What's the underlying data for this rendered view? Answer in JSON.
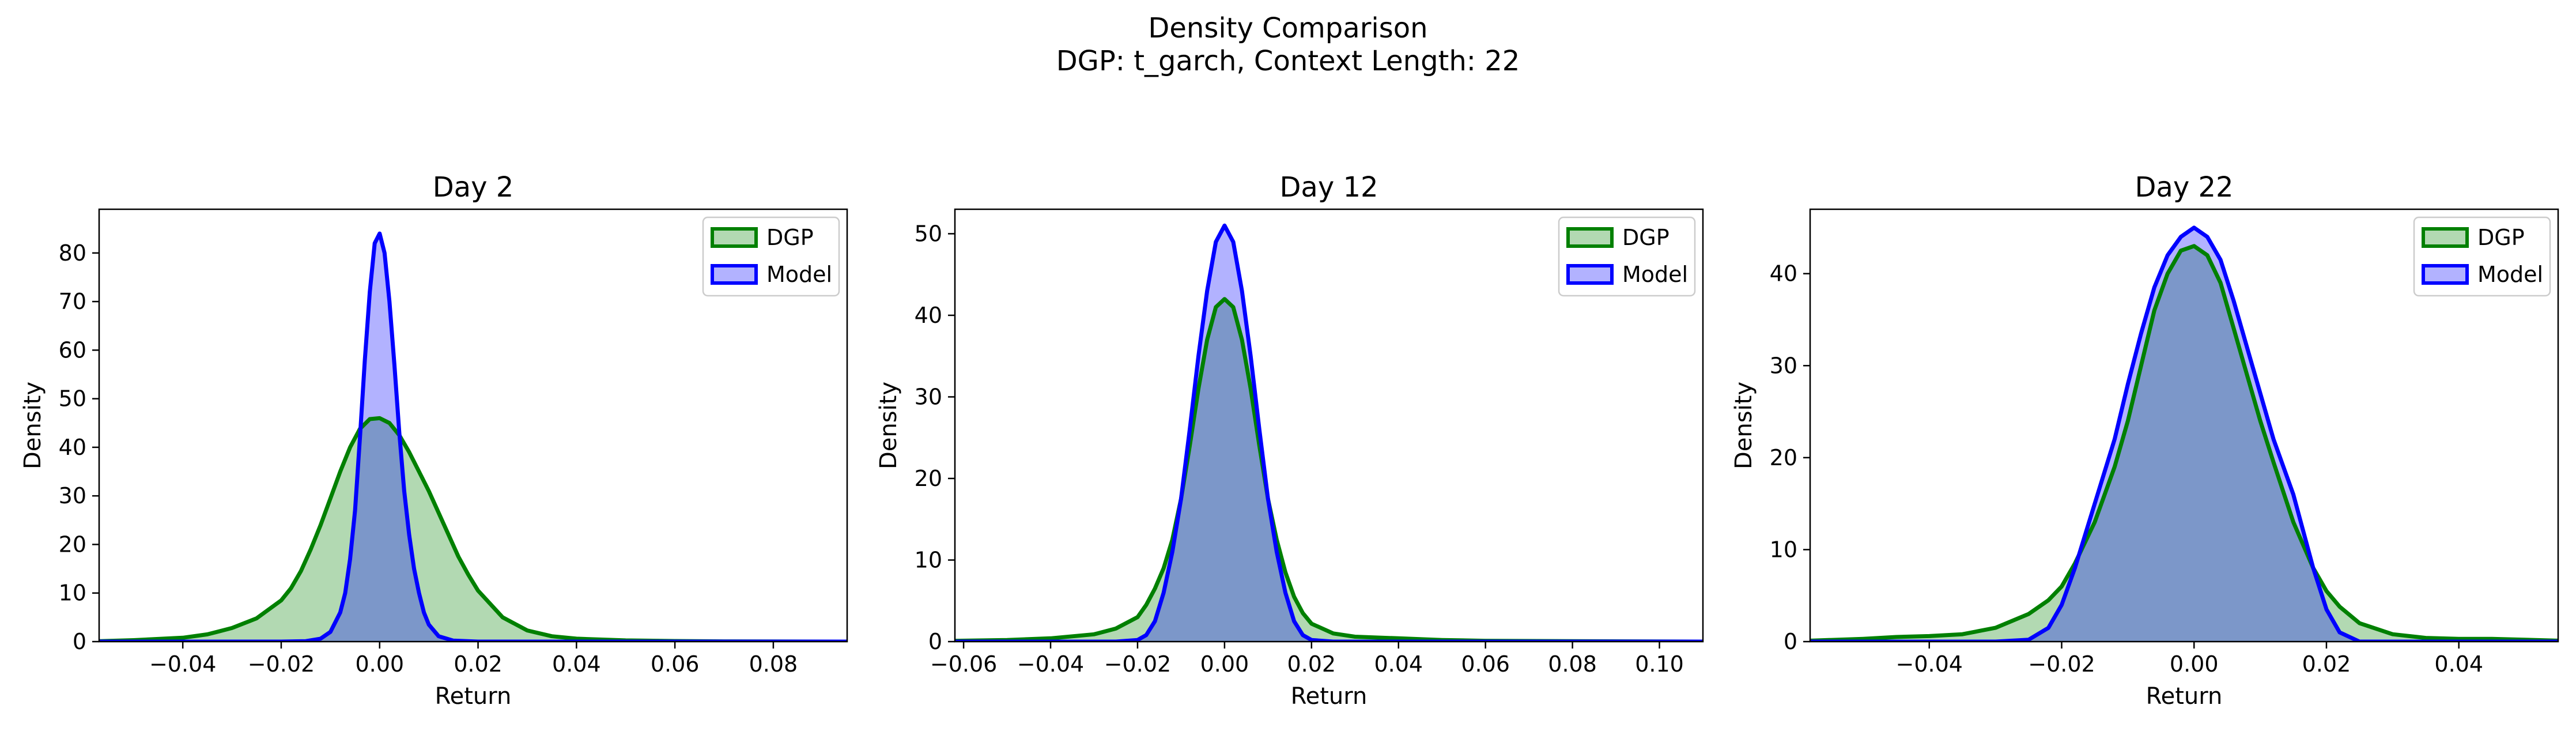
{
  "figure": {
    "title_line1": "Density Comparison",
    "title_line2": "DGP: t_garch, Context Length: 22"
  },
  "chart_data": [
    {
      "type": "area",
      "title": "Day 2",
      "xlabel": "Return",
      "ylabel": "Density",
      "xlim": [
        -0.057,
        0.095
      ],
      "ylim": [
        0,
        89
      ],
      "xticks": [
        -0.04,
        -0.02,
        0.0,
        0.02,
        0.04,
        0.06,
        0.08
      ],
      "xtick_labels": [
        "−0.04",
        "−0.02",
        "0.00",
        "0.02",
        "0.04",
        "0.06",
        "0.08"
      ],
      "yticks": [
        0,
        10,
        20,
        30,
        40,
        50,
        60,
        70,
        80
      ],
      "ytick_labels": [
        "0",
        "10",
        "20",
        "30",
        "40",
        "50",
        "60",
        "70",
        "80"
      ],
      "legend_position": "upper right",
      "grid": false,
      "series": [
        {
          "name": "DGP",
          "color": "#008000",
          "x": [
            -0.057,
            -0.05,
            -0.04,
            -0.035,
            -0.03,
            -0.025,
            -0.02,
            -0.018,
            -0.016,
            -0.014,
            -0.012,
            -0.01,
            -0.008,
            -0.006,
            -0.004,
            -0.002,
            0,
            0.002,
            0.004,
            0.006,
            0.008,
            0.01,
            0.012,
            0.014,
            0.016,
            0.018,
            0.02,
            0.025,
            0.03,
            0.035,
            0.04,
            0.05,
            0.06,
            0.07,
            0.08,
            0.095
          ],
          "y": [
            0.1,
            0.3,
            0.8,
            1.5,
            2.8,
            4.8,
            8.5,
            11,
            14.5,
            19,
            24,
            29.5,
            35,
            40,
            43.8,
            45.8,
            46,
            45,
            42.5,
            39,
            35,
            31,
            26.5,
            22,
            17.5,
            13.8,
            10.5,
            5,
            2.3,
            1.1,
            0.6,
            0.25,
            0.12,
            0.05,
            0.02,
            0
          ]
        },
        {
          "name": "Model",
          "color": "#0000ff",
          "x": [
            -0.057,
            -0.02,
            -0.015,
            -0.012,
            -0.01,
            -0.008,
            -0.007,
            -0.006,
            -0.005,
            -0.004,
            -0.003,
            -0.002,
            -0.001,
            0,
            0.001,
            0.002,
            0.003,
            0.004,
            0.005,
            0.006,
            0.007,
            0.008,
            0.009,
            0.01,
            0.012,
            0.015,
            0.02,
            0.095
          ],
          "y": [
            0,
            0,
            0.1,
            0.6,
            2,
            6,
            10,
            17,
            27,
            42,
            58,
            72,
            82,
            84,
            80,
            70,
            57,
            43,
            31,
            22,
            15,
            10,
            6,
            3.5,
            1.1,
            0.2,
            0,
            0
          ]
        }
      ]
    },
    {
      "type": "area",
      "title": "Day 12",
      "xlabel": "Return",
      "ylabel": "Density",
      "xlim": [
        -0.062,
        0.11
      ],
      "ylim": [
        0,
        53
      ],
      "xticks": [
        -0.06,
        -0.04,
        -0.02,
        0.0,
        0.02,
        0.04,
        0.06,
        0.08,
        0.1
      ],
      "xtick_labels": [
        "−0.06",
        "−0.04",
        "−0.02",
        "0.00",
        "0.02",
        "0.04",
        "0.06",
        "0.08",
        "0.10"
      ],
      "yticks": [
        0,
        10,
        20,
        30,
        40,
        50
      ],
      "ytick_labels": [
        "0",
        "10",
        "20",
        "30",
        "40",
        "50"
      ],
      "legend_position": "upper right",
      "grid": false,
      "series": [
        {
          "name": "DGP",
          "color": "#008000",
          "x": [
            -0.062,
            -0.05,
            -0.04,
            -0.03,
            -0.025,
            -0.02,
            -0.018,
            -0.016,
            -0.014,
            -0.012,
            -0.01,
            -0.008,
            -0.006,
            -0.004,
            -0.002,
            0,
            0.002,
            0.004,
            0.006,
            0.008,
            0.01,
            0.012,
            0.014,
            0.016,
            0.018,
            0.02,
            0.025,
            0.03,
            0.04,
            0.05,
            0.06,
            0.08,
            0.11
          ],
          "y": [
            0.1,
            0.2,
            0.4,
            0.9,
            1.6,
            3,
            4.5,
            6.5,
            9,
            12.5,
            17.5,
            24,
            31,
            37,
            41,
            42,
            41,
            37,
            31,
            24,
            17.5,
            12.5,
            8.5,
            5.5,
            3.5,
            2.2,
            1,
            0.6,
            0.4,
            0.2,
            0.1,
            0.05,
            0
          ]
        },
        {
          "name": "Model",
          "color": "#0000ff",
          "x": [
            -0.062,
            -0.025,
            -0.02,
            -0.018,
            -0.016,
            -0.014,
            -0.012,
            -0.01,
            -0.008,
            -0.006,
            -0.004,
            -0.002,
            0,
            0.002,
            0.004,
            0.006,
            0.008,
            0.01,
            0.012,
            0.014,
            0.016,
            0.018,
            0.02,
            0.025,
            0.11
          ],
          "y": [
            0,
            0,
            0.2,
            0.8,
            2.5,
            6,
            11,
            17.5,
            26,
            35,
            43,
            49,
            51,
            49,
            43,
            35,
            26,
            17.5,
            11,
            6,
            2.5,
            0.8,
            0.2,
            0,
            0
          ]
        }
      ]
    },
    {
      "type": "area",
      "title": "Day 22",
      "xlabel": "Return",
      "ylabel": "Density",
      "xlim": [
        -0.058,
        0.055
      ],
      "ylim": [
        0,
        47
      ],
      "xticks": [
        -0.04,
        -0.02,
        0.0,
        0.02,
        0.04
      ],
      "xtick_labels": [
        "−0.04",
        "−0.02",
        "0.00",
        "0.02",
        "0.04"
      ],
      "yticks": [
        0,
        10,
        20,
        30,
        40
      ],
      "ytick_labels": [
        "0",
        "10",
        "20",
        "30",
        "40"
      ],
      "legend_position": "upper right",
      "grid": false,
      "series": [
        {
          "name": "DGP",
          "color": "#008000",
          "x": [
            -0.058,
            -0.05,
            -0.045,
            -0.04,
            -0.035,
            -0.03,
            -0.025,
            -0.022,
            -0.02,
            -0.018,
            -0.015,
            -0.012,
            -0.01,
            -0.008,
            -0.006,
            -0.004,
            -0.002,
            0,
            0.002,
            0.004,
            0.006,
            0.008,
            0.01,
            0.012,
            0.015,
            0.018,
            0.02,
            0.022,
            0.025,
            0.03,
            0.035,
            0.04,
            0.045,
            0.05,
            0.055
          ],
          "y": [
            0.1,
            0.3,
            0.5,
            0.6,
            0.8,
            1.5,
            3,
            4.5,
            6,
            8.5,
            13,
            19,
            24,
            30,
            36,
            40,
            42.5,
            43,
            42,
            39,
            34,
            29,
            24,
            19.5,
            13,
            8,
            5.5,
            3.8,
            2,
            0.8,
            0.4,
            0.3,
            0.3,
            0.2,
            0.1
          ]
        },
        {
          "name": "Model",
          "color": "#0000ff",
          "x": [
            -0.058,
            -0.03,
            -0.025,
            -0.022,
            -0.02,
            -0.018,
            -0.015,
            -0.012,
            -0.01,
            -0.008,
            -0.006,
            -0.004,
            -0.002,
            0,
            0.002,
            0.004,
            0.006,
            0.008,
            0.01,
            0.012,
            0.015,
            0.018,
            0.02,
            0.022,
            0.025,
            0.055
          ],
          "y": [
            0,
            0,
            0.2,
            1.5,
            4,
            8,
            15,
            22,
            28,
            33.5,
            38.5,
            42,
            44,
            45,
            44,
            41.5,
            37,
            32,
            27,
            22,
            16,
            8,
            3.5,
            1,
            0,
            0
          ]
        }
      ]
    }
  ]
}
